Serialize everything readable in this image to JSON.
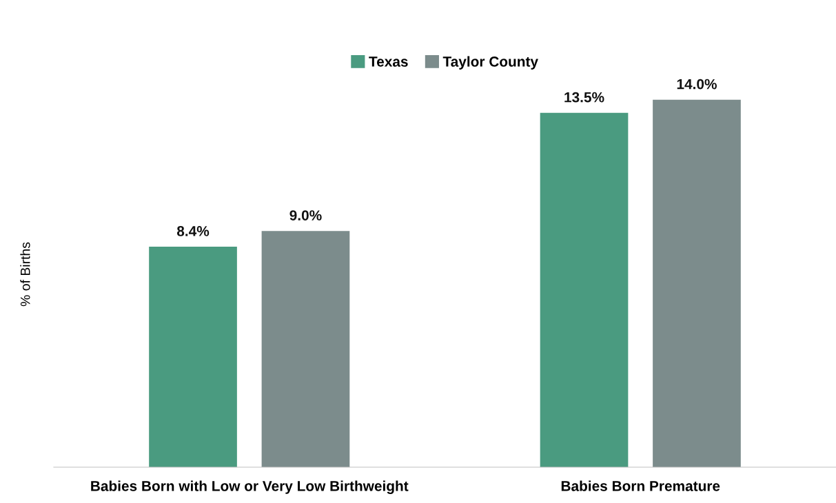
{
  "chart_data": {
    "type": "bar",
    "ylabel": "% of Births",
    "categories": [
      "Babies Born with Low or Very Low Birthweight",
      "Babies Born Premature"
    ],
    "series": [
      {
        "name": "Texas",
        "color": "#4a9b80",
        "values": [
          8.4,
          13.5
        ],
        "value_labels": [
          "8.4%",
          "13.5%"
        ]
      },
      {
        "name": "Taylor County",
        "color": "#7c8c8c",
        "values": [
          9.0,
          14.0
        ],
        "value_labels": [
          "9.0%",
          "14.0%"
        ]
      }
    ],
    "tick_labels": "x",
    "grid": false,
    "legend": "top"
  }
}
